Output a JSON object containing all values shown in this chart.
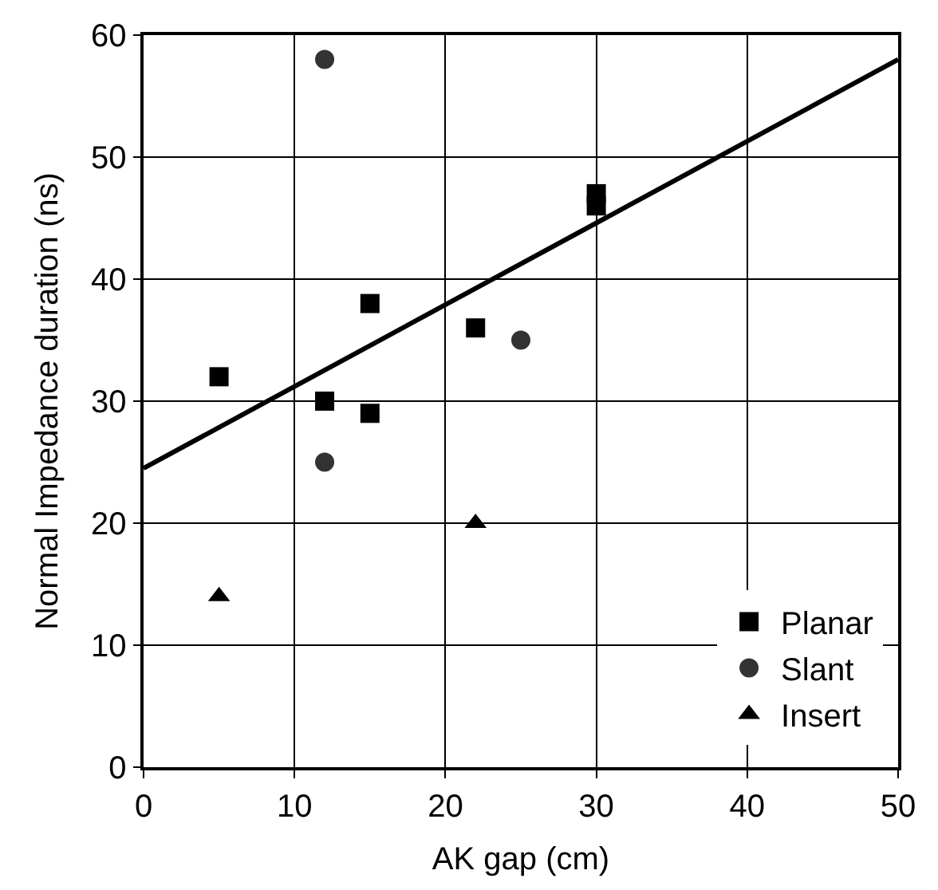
{
  "chart_data": {
    "type": "scatter",
    "xlabel": "AK gap (cm)",
    "ylabel": "Normal Impedance duration (ns)",
    "xlim": [
      0,
      50
    ],
    "ylim": [
      0,
      60
    ],
    "xticks": [
      0,
      10,
      20,
      30,
      40,
      50
    ],
    "yticks": [
      0,
      10,
      20,
      30,
      40,
      50,
      60
    ],
    "grid": true,
    "legend": "bottom right",
    "series": [
      {
        "name": "Planar",
        "color": "#000000",
        "marker": "square",
        "x": [
          5,
          12,
          15,
          15,
          22,
          30,
          30
        ],
        "values": [
          32,
          30,
          38,
          29,
          36,
          47,
          46
        ]
      },
      {
        "name": "Slant",
        "color": "#333333",
        "marker": "circle",
        "x": [
          12,
          12,
          25
        ],
        "values": [
          58,
          25,
          35
        ]
      },
      {
        "name": "Insert",
        "color": "#000000",
        "marker": "triangle",
        "x": [
          5,
          22
        ],
        "values": [
          14,
          20
        ]
      },
      {
        "type": "line",
        "color": "#000000",
        "marker": "none",
        "x": [
          0,
          50
        ],
        "values": [
          24.5,
          58
        ]
      }
    ]
  }
}
